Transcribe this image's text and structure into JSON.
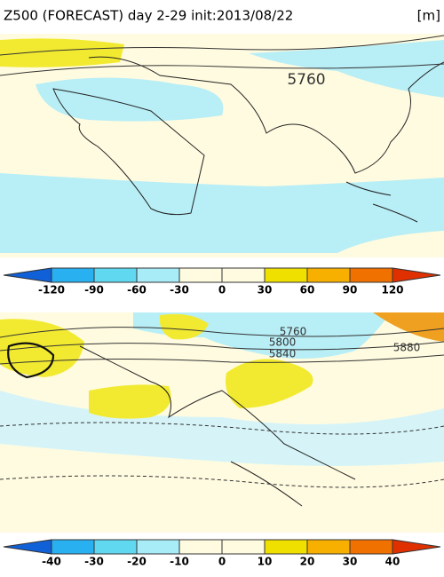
{
  "header": {
    "title": "Z500 (FORECAST) day 2-29 init:2013/08/22",
    "unit": "[m]"
  },
  "panels": [
    {
      "contour_labels": [
        "5760"
      ]
    },
    {
      "contour_labels": [
        "5760",
        "5800",
        "5840",
        "5880"
      ]
    }
  ],
  "colorbars": [
    {
      "ticks": [
        -120,
        -90,
        -60,
        -30,
        0,
        30,
        60,
        90,
        120
      ]
    },
    {
      "ticks": [
        -40,
        -30,
        -20,
        -10,
        0,
        10,
        20,
        30,
        40
      ]
    }
  ]
}
